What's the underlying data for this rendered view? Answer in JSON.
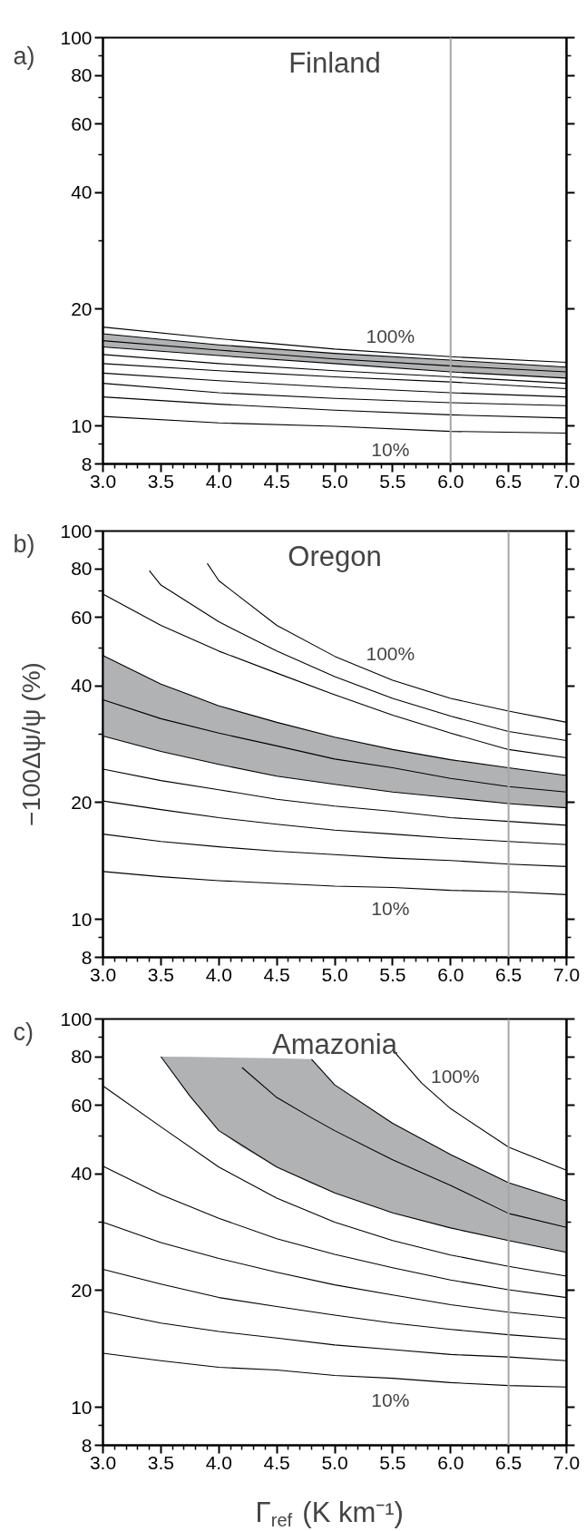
{
  "chart_data": [
    {
      "type": "line",
      "title": "Finland",
      "annotations": [
        "a)",
        "100%",
        "10%"
      ],
      "xlim": [
        3,
        7
      ],
      "ylim": [
        8,
        100
      ],
      "log": "y",
      "grid": false,
      "xticks": [
        {
          "value": 3,
          "label": "3.0"
        },
        {
          "value": 3.1,
          "label": null
        },
        {
          "value": 3.2,
          "label": null
        },
        {
          "value": 3.3,
          "label": null
        },
        {
          "value": 3.4,
          "label": null
        },
        {
          "value": 3.5,
          "label": "3.5"
        },
        {
          "value": 3.6,
          "label": null
        },
        {
          "value": 3.7,
          "label": null
        },
        {
          "value": 3.8,
          "label": null
        },
        {
          "value": 3.9,
          "label": null
        },
        {
          "value": 4,
          "label": "4.0"
        },
        {
          "value": 4.1,
          "label": null
        },
        {
          "value": 4.2,
          "label": null
        },
        {
          "value": 4.3,
          "label": null
        },
        {
          "value": 4.4,
          "label": null
        },
        {
          "value": 4.5,
          "label": "4.5"
        },
        {
          "value": 4.6,
          "label": null
        },
        {
          "value": 4.7,
          "label": null
        },
        {
          "value": 4.8,
          "label": null
        },
        {
          "value": 4.9,
          "label": null
        },
        {
          "value": 5,
          "label": "5.0"
        },
        {
          "value": 5.1,
          "label": null
        },
        {
          "value": 5.2,
          "label": null
        },
        {
          "value": 5.3,
          "label": null
        },
        {
          "value": 5.4,
          "label": null
        },
        {
          "value": 5.5,
          "label": "5.5"
        },
        {
          "value": 5.6,
          "label": null
        },
        {
          "value": 5.7,
          "label": null
        },
        {
          "value": 5.8,
          "label": null
        },
        {
          "value": 5.9,
          "label": null
        },
        {
          "value": 6,
          "label": "6.0"
        },
        {
          "value": 6.1,
          "label": null
        },
        {
          "value": 6.2,
          "label": null
        },
        {
          "value": 6.3,
          "label": null
        },
        {
          "value": 6.4,
          "label": null
        },
        {
          "value": 6.5,
          "label": "6.5"
        },
        {
          "value": 6.6,
          "label": null
        },
        {
          "value": 6.7,
          "label": null
        },
        {
          "value": 6.8,
          "label": null
        },
        {
          "value": 6.9,
          "label": null
        },
        {
          "value": 7,
          "label": "7.0"
        }
      ],
      "yticks": [
        8,
        {
          "value": 9,
          "label": null
        },
        10,
        20,
        {
          "value": 30,
          "label": null
        },
        40,
        {
          "value": 50,
          "label": null
        },
        60,
        {
          "value": 70,
          "label": null
        },
        80,
        {
          "value": 90,
          "label": null
        },
        100
      ],
      "ref_lines": [
        {
          "axis": "x",
          "value": 6,
          "color": "#a6a6a6"
        }
      ],
      "series": [
        {
          "color": "#000000",
          "x": [
            3,
            4,
            5,
            6,
            7
          ],
          "values": [
            10.6,
            10.2,
            10.0,
            9.7,
            9.6
          ]
        },
        {
          "color": "#000000",
          "x": [
            3,
            4,
            5,
            6,
            7
          ],
          "values": [
            11.9,
            11.4,
            11.0,
            10.7,
            10.5
          ]
        },
        {
          "color": "#000000",
          "x": [
            3,
            4,
            5,
            6,
            7
          ],
          "values": [
            12.9,
            12.2,
            11.8,
            11.5,
            11.3
          ]
        },
        {
          "color": "#000000",
          "x": [
            3,
            4,
            5,
            6,
            7
          ],
          "values": [
            13.7,
            13.1,
            12.6,
            12.2,
            11.9
          ]
        },
        {
          "color": "#000000",
          "x": [
            3,
            4,
            5,
            6,
            7
          ],
          "values": [
            14.5,
            13.9,
            13.4,
            13.0,
            12.5
          ]
        },
        {
          "color": "#000000",
          "x": [
            3,
            4,
            5,
            6,
            7
          ],
          "values": [
            15.3,
            14.5,
            13.9,
            13.4,
            12.9
          ]
        },
        {
          "color": "#000000",
          "x": [
            3,
            4,
            5,
            6,
            7
          ],
          "values": [
            16.0,
            15.2,
            14.5,
            13.8,
            13.3
          ]
        },
        {
          "color": "#000000",
          "x": [
            3,
            4,
            5,
            6,
            7
          ],
          "values": [
            16.6,
            15.7,
            14.9,
            14.3,
            13.8
          ],
          "lower": [
            16.0,
            15.2,
            14.5,
            13.8,
            13.3
          ],
          "upper": [
            17.3,
            16.2,
            15.4,
            14.8,
            14.2
          ]
        },
        {
          "color": "#000000",
          "x": [
            3,
            4,
            5,
            6,
            7
          ],
          "values": [
            17.3,
            16.2,
            15.4,
            14.8,
            14.2
          ]
        },
        {
          "color": "#000000",
          "x": [
            3,
            4,
            5,
            6,
            7
          ],
          "values": [
            18.0,
            16.8,
            15.8,
            15.1,
            14.6
          ]
        }
      ]
    },
    {
      "type": "line",
      "title": "Oregon",
      "ylabel": "−100Δψ/ψ (%)",
      "annotations": [
        "b)",
        "100%",
        "10%"
      ],
      "xlim": [
        3,
        7
      ],
      "ylim": [
        8,
        100
      ],
      "log": "y",
      "grid": false,
      "xticks": [
        {
          "value": 3,
          "label": "3.0"
        },
        {
          "value": 3.1,
          "label": null
        },
        {
          "value": 3.2,
          "label": null
        },
        {
          "value": 3.3,
          "label": null
        },
        {
          "value": 3.4,
          "label": null
        },
        {
          "value": 3.5,
          "label": "3.5"
        },
        {
          "value": 3.6,
          "label": null
        },
        {
          "value": 3.7,
          "label": null
        },
        {
          "value": 3.8,
          "label": null
        },
        {
          "value": 3.9,
          "label": null
        },
        {
          "value": 4,
          "label": "4.0"
        },
        {
          "value": 4.1,
          "label": null
        },
        {
          "value": 4.2,
          "label": null
        },
        {
          "value": 4.3,
          "label": null
        },
        {
          "value": 4.4,
          "label": null
        },
        {
          "value": 4.5,
          "label": "4.5"
        },
        {
          "value": 4.6,
          "label": null
        },
        {
          "value": 4.7,
          "label": null
        },
        {
          "value": 4.8,
          "label": null
        },
        {
          "value": 4.9,
          "label": null
        },
        {
          "value": 5,
          "label": "5.0"
        },
        {
          "value": 5.1,
          "label": null
        },
        {
          "value": 5.2,
          "label": null
        },
        {
          "value": 5.3,
          "label": null
        },
        {
          "value": 5.4,
          "label": null
        },
        {
          "value": 5.5,
          "label": "5.5"
        },
        {
          "value": 5.6,
          "label": null
        },
        {
          "value": 5.7,
          "label": null
        },
        {
          "value": 5.8,
          "label": null
        },
        {
          "value": 5.9,
          "label": null
        },
        {
          "value": 6,
          "label": "6.0"
        },
        {
          "value": 6.1,
          "label": null
        },
        {
          "value": 6.2,
          "label": null
        },
        {
          "value": 6.3,
          "label": null
        },
        {
          "value": 6.4,
          "label": null
        },
        {
          "value": 6.5,
          "label": "6.5"
        },
        {
          "value": 6.6,
          "label": null
        },
        {
          "value": 6.7,
          "label": null
        },
        {
          "value": 6.8,
          "label": null
        },
        {
          "value": 6.9,
          "label": null
        },
        {
          "value": 7,
          "label": "7.0"
        }
      ],
      "yticks": [
        8,
        {
          "value": 9,
          "label": null
        },
        10,
        20,
        {
          "value": 30,
          "label": null
        },
        40,
        {
          "value": 50,
          "label": null
        },
        60,
        {
          "value": 70,
          "label": null
        },
        80,
        {
          "value": 90,
          "label": null
        },
        100
      ],
      "ref_lines": [
        {
          "axis": "x",
          "value": 6.5,
          "color": "#a6a6a6"
        }
      ],
      "series": [
        {
          "color": "#000000",
          "x": [
            3,
            3.5,
            4,
            4.5,
            5,
            5.5,
            6,
            6.5,
            7
          ],
          "values": [
            13.3,
            12.9,
            12.6,
            12.4,
            12.2,
            12.1,
            11.9,
            11.8,
            11.6
          ]
        },
        {
          "color": "#000000",
          "x": [
            3,
            3.5,
            4,
            4.5,
            5,
            5.5,
            6,
            6.5,
            7
          ],
          "values": [
            16.6,
            15.9,
            15.4,
            15.0,
            14.7,
            14.4,
            14.2,
            13.9,
            13.7
          ]
        },
        {
          "color": "#000000",
          "x": [
            3,
            3.5,
            4,
            4.5,
            5,
            5.5,
            6,
            6.5,
            7
          ],
          "values": [
            20.2,
            19.2,
            18.3,
            17.6,
            17.0,
            16.6,
            16.2,
            15.9,
            15.6
          ]
        },
        {
          "color": "#000000",
          "x": [
            3,
            3.5,
            4,
            4.5,
            5,
            5.5,
            6,
            6.5,
            7
          ],
          "values": [
            24.4,
            22.8,
            21.6,
            20.4,
            19.6,
            19.0,
            18.3,
            17.9,
            17.5
          ]
        },
        {
          "color": "#000000",
          "x": [
            3,
            3.5,
            4,
            4.5,
            5,
            5.5,
            6,
            6.5,
            7
          ],
          "values": [
            29.7,
            27.1,
            25.1,
            23.4,
            22.3,
            21.3,
            20.6,
            19.9,
            19.4
          ]
        },
        {
          "color": "#000000",
          "x": [
            3,
            3.5,
            4,
            4.5,
            5,
            5.5,
            6,
            6.5,
            7
          ],
          "values": [
            36.8,
            32.9,
            30.2,
            28.0,
            25.9,
            24.6,
            23.1,
            22.0,
            21.3
          ],
          "lower": [
            29.7,
            27.1,
            25.1,
            23.4,
            22.3,
            21.3,
            20.6,
            19.9,
            19.4
          ],
          "upper": [
            47.8,
            40.4,
            35.5,
            32.2,
            29.5,
            27.4,
            25.8,
            24.6,
            23.5
          ]
        },
        {
          "color": "#000000",
          "x": [
            3,
            3.5,
            4,
            4.5,
            5,
            5.5,
            6,
            6.5,
            7
          ],
          "values": [
            47.8,
            40.4,
            35.5,
            32.2,
            29.5,
            27.4,
            25.8,
            24.6,
            23.5
          ]
        },
        {
          "color": "#000000",
          "x": [
            3,
            3.5,
            4,
            4.5,
            5,
            5.5,
            6,
            6.5,
            7
          ],
          "values": [
            68.8,
            57.2,
            49.1,
            43.1,
            37.9,
            33.6,
            30.2,
            27.4,
            26.1
          ]
        },
        {
          "color": "#000000",
          "x": [
            3.4,
            3.5,
            4,
            4.5,
            5,
            5.5,
            6,
            6.5,
            7
          ],
          "values": [
            79.1,
            72.6,
            58.4,
            49.1,
            42.2,
            37.1,
            33.4,
            30.5,
            28.9
          ]
        },
        {
          "color": "#000000",
          "x": [
            3.9,
            4,
            4.5,
            5,
            5.5,
            6,
            6.5,
            7
          ],
          "values": [
            82.6,
            74.5,
            57.2,
            47.6,
            41.3,
            37.1,
            34.4,
            32.2
          ]
        }
      ]
    },
    {
      "type": "line",
      "title": "Amazonia",
      "xlabel": "Γ$_{ref}$ (K km⁻¹)",
      "annotations": [
        "c)",
        "100%",
        "10%"
      ],
      "xlim": [
        3,
        7
      ],
      "ylim": [
        8,
        100
      ],
      "log": "y",
      "grid": false,
      "xticks": [
        {
          "value": 3,
          "label": "3.0"
        },
        {
          "value": 3.1,
          "label": null
        },
        {
          "value": 3.2,
          "label": null
        },
        {
          "value": 3.3,
          "label": null
        },
        {
          "value": 3.4,
          "label": null
        },
        {
          "value": 3.5,
          "label": "3.5"
        },
        {
          "value": 3.6,
          "label": null
        },
        {
          "value": 3.7,
          "label": null
        },
        {
          "value": 3.8,
          "label": null
        },
        {
          "value": 3.9,
          "label": null
        },
        {
          "value": 4,
          "label": "4.0"
        },
        {
          "value": 4.1,
          "label": null
        },
        {
          "value": 4.2,
          "label": null
        },
        {
          "value": 4.3,
          "label": null
        },
        {
          "value": 4.4,
          "label": null
        },
        {
          "value": 4.5,
          "label": "4.5"
        },
        {
          "value": 4.6,
          "label": null
        },
        {
          "value": 4.7,
          "label": null
        },
        {
          "value": 4.8,
          "label": null
        },
        {
          "value": 4.9,
          "label": null
        },
        {
          "value": 5,
          "label": "5.0"
        },
        {
          "value": 5.1,
          "label": null
        },
        {
          "value": 5.2,
          "label": null
        },
        {
          "value": 5.3,
          "label": null
        },
        {
          "value": 5.4,
          "label": null
        },
        {
          "value": 5.5,
          "label": "5.5"
        },
        {
          "value": 5.6,
          "label": null
        },
        {
          "value": 5.7,
          "label": null
        },
        {
          "value": 5.8,
          "label": null
        },
        {
          "value": 5.9,
          "label": null
        },
        {
          "value": 6,
          "label": "6.0"
        },
        {
          "value": 6.1,
          "label": null
        },
        {
          "value": 6.2,
          "label": null
        },
        {
          "value": 6.3,
          "label": null
        },
        {
          "value": 6.4,
          "label": null
        },
        {
          "value": 6.5,
          "label": "6.5"
        },
        {
          "value": 6.6,
          "label": null
        },
        {
          "value": 6.7,
          "label": null
        },
        {
          "value": 6.8,
          "label": null
        },
        {
          "value": 6.9,
          "label": null
        },
        {
          "value": 7,
          "label": "7.0"
        }
      ],
      "yticks": [
        8,
        {
          "value": 9,
          "label": null
        },
        10,
        20,
        {
          "value": 30,
          "label": null
        },
        40,
        {
          "value": 50,
          "label": null
        },
        60,
        {
          "value": 70,
          "label": null
        },
        80,
        {
          "value": 90,
          "label": null
        },
        100
      ],
      "ref_lines": [
        {
          "axis": "x",
          "value": 6.5,
          "color": "#a6a6a6"
        }
      ],
      "series": [
        {
          "color": "#000000",
          "x": [
            3,
            3.5,
            4,
            4.5,
            5,
            5.5,
            6,
            6.5,
            7
          ],
          "values": [
            13.8,
            13.2,
            12.7,
            12.5,
            12.1,
            11.9,
            11.6,
            11.4,
            11.3
          ]
        },
        {
          "color": "#000000",
          "x": [
            3,
            3.5,
            4,
            4.5,
            5,
            5.5,
            6,
            6.5,
            7
          ],
          "values": [
            17.7,
            16.5,
            15.7,
            15.1,
            14.5,
            14.1,
            13.7,
            13.5,
            13.2
          ]
        },
        {
          "color": "#000000",
          "x": [
            3,
            3.5,
            4,
            4.5,
            5,
            5.5,
            6,
            6.5,
            7
          ],
          "values": [
            22.7,
            20.8,
            19.2,
            18.2,
            17.3,
            16.5,
            15.9,
            15.4,
            15.0
          ]
        },
        {
          "color": "#000000",
          "x": [
            3,
            3.5,
            4,
            4.5,
            5,
            5.5,
            6,
            6.5,
            7
          ],
          "values": [
            30.0,
            26.6,
            24.2,
            22.3,
            20.7,
            19.5,
            18.4,
            17.6,
            17.0
          ]
        },
        {
          "color": "#000000",
          "x": [
            3,
            3.5,
            4,
            4.5,
            5,
            5.5,
            6,
            6.5,
            7
          ],
          "values": [
            41.8,
            35.3,
            30.7,
            27.2,
            24.8,
            22.9,
            21.3,
            20.1,
            19.2
          ]
        },
        {
          "color": "#000000",
          "x": [
            3,
            3.5,
            4,
            4.5,
            5,
            5.5,
            6,
            6.5,
            7
          ],
          "values": [
            67.3,
            52.8,
            41.6,
            34.6,
            30.0,
            26.9,
            24.7,
            23.1,
            21.8
          ]
        },
        {
          "color": "#000000",
          "x": [
            3.5,
            3.75,
            4,
            4.5,
            5,
            5.5,
            6,
            6.5,
            7
          ],
          "values": [
            80.0,
            63.4,
            51.6,
            41.6,
            35.7,
            31.7,
            29.0,
            26.9,
            25.1
          ]
        },
        {
          "color": "#000000",
          "x": [
            3.5,
            3.75,
            4,
            4.2,
            4.5,
            4.8,
            5,
            5.5,
            6,
            6.5,
            7
          ],
          "values": [
            null,
            null,
            null,
            75.0,
            62.8,
            55.7,
            51.6,
            43.4,
            37.3,
            31.6,
            29.1
          ],
          "lower": [
            80.0,
            63.4,
            51.6,
            46.8,
            41.6,
            37.7,
            35.7,
            31.7,
            29.0,
            26.9,
            25.1
          ],
          "upper": [
            80.0,
            79.9,
            79.7,
            79.5,
            79.3,
            78.8,
            67.7,
            53.9,
            44.8,
            37.9,
            34.0
          ]
        },
        {
          "color": "#000000",
          "x": [
            4.8,
            5,
            5.5,
            6,
            6.5,
            7
          ],
          "values": [
            78.8,
            67.7,
            53.9,
            44.8,
            37.9,
            34.0
          ]
        },
        {
          "color": "#000000",
          "x": [
            5.5,
            5.75,
            6,
            6.5,
            7
          ],
          "values": [
            83.2,
            68.4,
            58.8,
            46.8,
            40.8
          ]
        }
      ]
    }
  ]
}
